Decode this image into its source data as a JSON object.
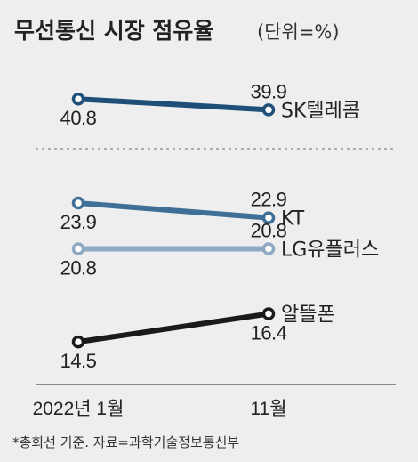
{
  "title": "무선통신 시장 점유율",
  "unit": "(단위=%)",
  "source": "*총회선 기준. 자료=과학기술정보통신부",
  "chart_data": [
    {
      "type": "line",
      "categories": [
        "2022년 1월",
        "11월"
      ],
      "series": [
        {
          "name": "SK텔레콤",
          "values": [
            40.8,
            39.9
          ],
          "color": "#1f4e79"
        }
      ]
    },
    {
      "type": "line",
      "categories": [
        "2022년 1월",
        "11월"
      ],
      "series": [
        {
          "name": "KT",
          "values": [
            23.9,
            22.9
          ],
          "color": "#3f6f96"
        },
        {
          "name": "LG유플러스",
          "values": [
            20.8,
            20.8
          ],
          "color": "#8fa9c4"
        },
        {
          "name": "알뜰폰",
          "values": [
            14.5,
            16.4
          ],
          "color": "#1a1a1a"
        }
      ]
    }
  ]
}
